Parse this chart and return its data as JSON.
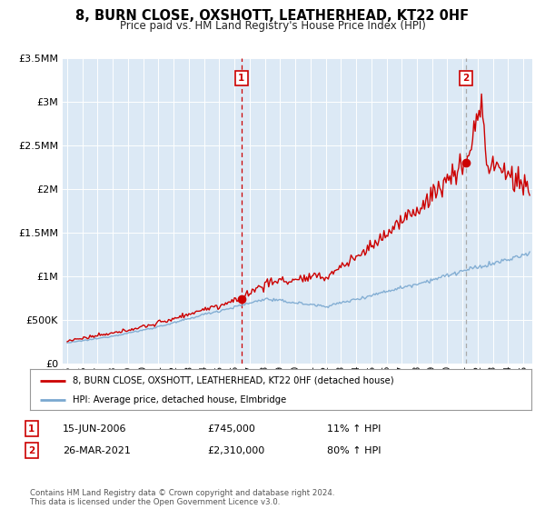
{
  "title": "8, BURN CLOSE, OXSHOTT, LEATHERHEAD, KT22 0HF",
  "subtitle": "Price paid vs. HM Land Registry's House Price Index (HPI)",
  "plot_bg_color": "#dce9f5",
  "ylim": [
    0,
    3500000
  ],
  "xlim_start": 1994.7,
  "xlim_end": 2025.6,
  "sale1_date": 2006.46,
  "sale1_price": 745000,
  "sale1_label": "1",
  "sale2_date": 2021.23,
  "sale2_price": 2310000,
  "sale2_label": "2",
  "red_line_color": "#cc0000",
  "blue_line_color": "#7aa8d0",
  "annotation_box_color": "#cc0000",
  "legend_line1": "8, BURN CLOSE, OXSHOTT, LEATHERHEAD, KT22 0HF (detached house)",
  "legend_line2": "HPI: Average price, detached house, Elmbridge",
  "table_row1": [
    "1",
    "15-JUN-2006",
    "£745,000",
    "11% ↑ HPI"
  ],
  "table_row2": [
    "2",
    "26-MAR-2021",
    "£2,310,000",
    "80% ↑ HPI"
  ],
  "footnote": "Contains HM Land Registry data © Crown copyright and database right 2024.\nThis data is licensed under the Open Government Licence v3.0."
}
